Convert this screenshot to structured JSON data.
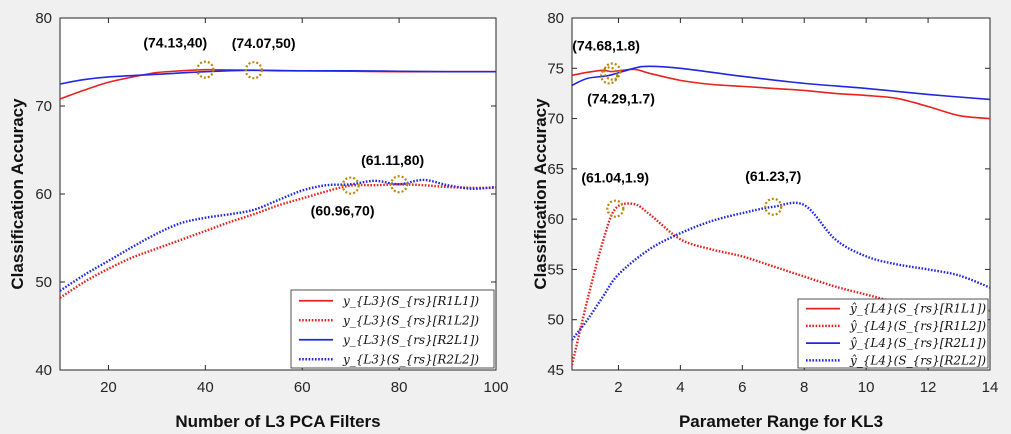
{
  "chart_data": [
    {
      "type": "line",
      "xlabel": "Number of L3 PCA Filters",
      "ylabel": "Classification Accuracy",
      "xlim": [
        10,
        100
      ],
      "ylim": [
        40,
        80
      ],
      "xticks": [
        "20",
        "40",
        "60",
        "80",
        "100"
      ],
      "yticks": [
        "40",
        "50",
        "60",
        "70",
        "80"
      ],
      "grid": false,
      "legend_position": "bottom-right",
      "series": [
        {
          "name": "y_{L3}(S_{rs}[R1L1])",
          "color": "#e8221e",
          "style": "solid",
          "x": [
            10,
            15,
            20,
            25,
            30,
            35,
            40,
            45,
            50,
            55,
            60,
            70,
            80,
            90,
            100
          ],
          "y": [
            70.8,
            71.8,
            72.7,
            73.3,
            73.8,
            74.0,
            74.13,
            74.1,
            74.07,
            74.0,
            74.0,
            73.95,
            73.9,
            73.9,
            73.9
          ]
        },
        {
          "name": "y_{L3}(S_{rs}[R1L2])",
          "color": "#e8221e",
          "style": "dotted",
          "x": [
            10,
            15,
            20,
            25,
            30,
            35,
            40,
            45,
            50,
            55,
            60,
            65,
            70,
            75,
            80,
            85,
            90,
            95,
            100
          ],
          "y": [
            48.2,
            50.0,
            51.5,
            52.8,
            53.8,
            54.8,
            55.8,
            56.8,
            57.7,
            58.7,
            59.5,
            60.3,
            60.96,
            61.0,
            61.1,
            61.0,
            60.8,
            60.7,
            60.7
          ]
        },
        {
          "name": "y_{L3}(S_{rs}[R2L1])",
          "color": "#1f28e0",
          "style": "solid",
          "x": [
            10,
            15,
            20,
            30,
            40,
            50,
            60,
            70,
            80,
            90,
            100
          ],
          "y": [
            72.5,
            73.0,
            73.3,
            73.6,
            73.9,
            74.05,
            74.0,
            74.0,
            73.95,
            73.9,
            73.9
          ]
        },
        {
          "name": "y_{L3}(S_{rs}[R2L2])",
          "color": "#1f28e0",
          "style": "dotted",
          "x": [
            10,
            15,
            20,
            25,
            30,
            35,
            40,
            45,
            50,
            55,
            60,
            65,
            70,
            75,
            80,
            85,
            90,
            95,
            100
          ],
          "y": [
            49.0,
            50.8,
            52.4,
            54.0,
            55.5,
            56.7,
            57.3,
            57.7,
            58.2,
            59.3,
            60.4,
            61.0,
            61.1,
            61.5,
            61.11,
            61.6,
            61.0,
            60.6,
            60.8
          ]
        }
      ],
      "annotations": [
        {
          "text": "(74.13,40)",
          "x": 40,
          "y": 74.13
        },
        {
          "text": "(74.07,50)",
          "x": 50,
          "y": 74.07
        },
        {
          "text": "(61.11,80)",
          "x": 80,
          "y": 61.11
        },
        {
          "text": "(60.96,70)",
          "x": 70,
          "y": 60.96
        }
      ]
    },
    {
      "type": "line",
      "xlabel": "Parameter Range for KL3",
      "ylabel": "Classification Accuracy",
      "xlim": [
        0.5,
        14
      ],
      "ylim": [
        45,
        80
      ],
      "xticks": [
        "2",
        "4",
        "6",
        "8",
        "10",
        "12",
        "14"
      ],
      "yticks": [
        "45",
        "50",
        "55",
        "60",
        "65",
        "70",
        "75",
        "80"
      ],
      "grid": false,
      "legend_position": "bottom-right",
      "series": [
        {
          "name": "ŷ_{L4}(S_{rs}[R1L1])",
          "color": "#e8221e",
          "style": "solid",
          "x": [
            0.5,
            1.0,
            1.5,
            1.8,
            2.5,
            3.0,
            4.0,
            5.0,
            6.0,
            7.0,
            8.0,
            9.0,
            10.0,
            11.0,
            12.0,
            13.0,
            14.0
          ],
          "y": [
            74.3,
            74.6,
            74.8,
            74.68,
            74.9,
            74.5,
            73.8,
            73.4,
            73.2,
            73.0,
            72.8,
            72.5,
            72.3,
            72.0,
            71.2,
            70.3,
            70.0
          ]
        },
        {
          "name": "ŷ_{L4}(S_{rs}[R1L2])",
          "color": "#e8221e",
          "style": "dotted",
          "x": [
            0.5,
            1.0,
            1.5,
            1.9,
            2.5,
            3.0,
            4.0,
            5.0,
            6.0,
            7.0,
            8.0,
            9.0,
            10.0,
            11.0,
            12.0,
            13.0,
            14.0
          ],
          "y": [
            45.5,
            52.0,
            57.8,
            61.04,
            61.5,
            60.5,
            58.0,
            57.0,
            56.3,
            55.3,
            54.3,
            53.3,
            52.5,
            51.7,
            51.0,
            50.7,
            50.9
          ]
        },
        {
          "name": "ŷ_{L4}(S_{rs}[R2L1])",
          "color": "#1f28e0",
          "style": "solid",
          "x": [
            0.5,
            1.0,
            1.7,
            2.5,
            3.0,
            4.0,
            6.0,
            8.0,
            10.0,
            12.0,
            14.0
          ],
          "y": [
            73.3,
            74.0,
            74.29,
            75.0,
            75.2,
            75.0,
            74.2,
            73.5,
            73.0,
            72.4,
            71.9
          ]
        },
        {
          "name": "ŷ_{L4}(S_{rs}[R2L2])",
          "color": "#1f28e0",
          "style": "dotted",
          "x": [
            0.5,
            1.0,
            1.5,
            2.0,
            3.0,
            4.0,
            5.0,
            6.0,
            7.0,
            8.0,
            9.0,
            10.0,
            11.0,
            12.0,
            13.0,
            14.0
          ],
          "y": [
            48.0,
            50.0,
            52.3,
            54.5,
            57.0,
            58.6,
            59.8,
            60.6,
            61.23,
            61.4,
            58.0,
            56.3,
            55.5,
            55.0,
            54.4,
            53.2
          ]
        }
      ],
      "annotations": [
        {
          "text": "(74.68,1.8)",
          "x": 1.8,
          "y": 74.68
        },
        {
          "text": "(74.29,1.7)",
          "x": 1.7,
          "y": 74.29
        },
        {
          "text": "(61.04,1.9)",
          "x": 1.9,
          "y": 61.04
        },
        {
          "text": "(61.23,7)",
          "x": 7,
          "y": 61.23
        }
      ]
    }
  ]
}
